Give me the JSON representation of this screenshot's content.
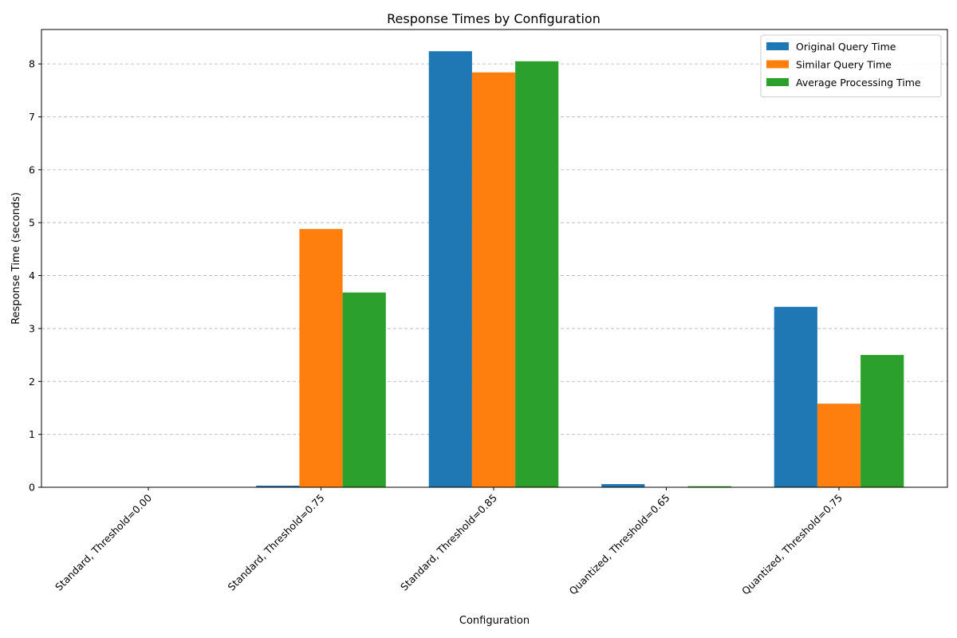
{
  "chart_data": {
    "type": "bar",
    "title": "Response Times by Configuration",
    "xlabel": "Configuration",
    "ylabel": "Response Time (seconds)",
    "categories": [
      "Standard, Threshold=0.00",
      "Standard, Threshold=0.75",
      "Standard, Threshold=0.85",
      "Quantized, Threshold=0.65",
      "Quantized, Threshold=0.75"
    ],
    "series": [
      {
        "name": "Original Query Time",
        "color": "#1f77b4",
        "values": [
          0.0,
          0.03,
          8.24,
          0.06,
          3.41
        ]
      },
      {
        "name": "Similar Query Time",
        "color": "#ff7f0e",
        "values": [
          0.0,
          4.88,
          7.84,
          0.0,
          1.58
        ]
      },
      {
        "name": "Average Processing Time",
        "color": "#2ca02c",
        "values": [
          0.0,
          3.68,
          8.05,
          0.02,
          2.5
        ]
      }
    ],
    "ylim": [
      0,
      8.65
    ],
    "yticks": [
      0,
      1,
      2,
      3,
      4,
      5,
      6,
      7,
      8
    ],
    "grid": "y-dashed",
    "legend_position": "top-right"
  }
}
